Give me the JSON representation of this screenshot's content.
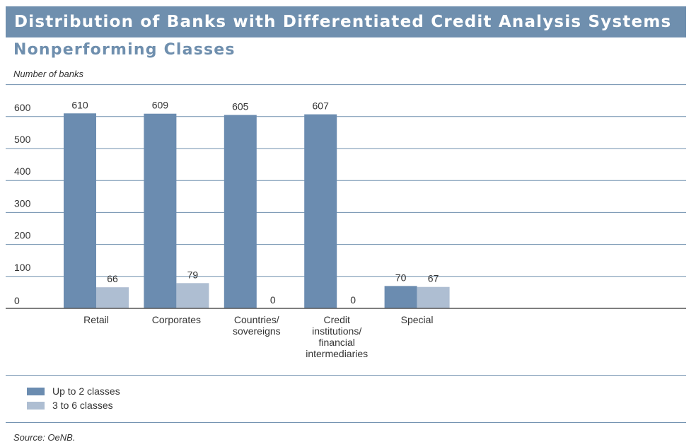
{
  "title": "Distribution of Banks with Differentiated Credit Analysis Systems",
  "subtitle": "Nonperforming Classes",
  "source": "Source: OeNB.",
  "colors": {
    "accent": "#6f8fae",
    "series1": "#6b8cb0",
    "series2": "#aebed2"
  },
  "chart_data": {
    "type": "bar",
    "title": "Distribution of Banks with Differentiated Credit Analysis Systems",
    "subtitle": "Nonperforming Classes",
    "xlabel": "",
    "ylabel": "Number of banks",
    "ylim": [
      0,
      700
    ],
    "yticks": [
      0,
      100,
      200,
      300,
      400,
      500,
      600
    ],
    "grid": true,
    "legend_placement": "bottom-left",
    "categories": [
      [
        "Retail"
      ],
      [
        "Corporates"
      ],
      [
        "Countries/",
        "sovereigns"
      ],
      [
        "Credit",
        "institutions/",
        "financial",
        "intermediaries"
      ],
      [
        "Special"
      ]
    ],
    "series": [
      {
        "name": "Up to 2 classes",
        "values": [
          610,
          609,
          605,
          607,
          70
        ],
        "color": "#6b8cb0"
      },
      {
        "name": "3 to 6 classes",
        "values": [
          66,
          79,
          0,
          0,
          67
        ],
        "color": "#aebed2"
      }
    ]
  }
}
